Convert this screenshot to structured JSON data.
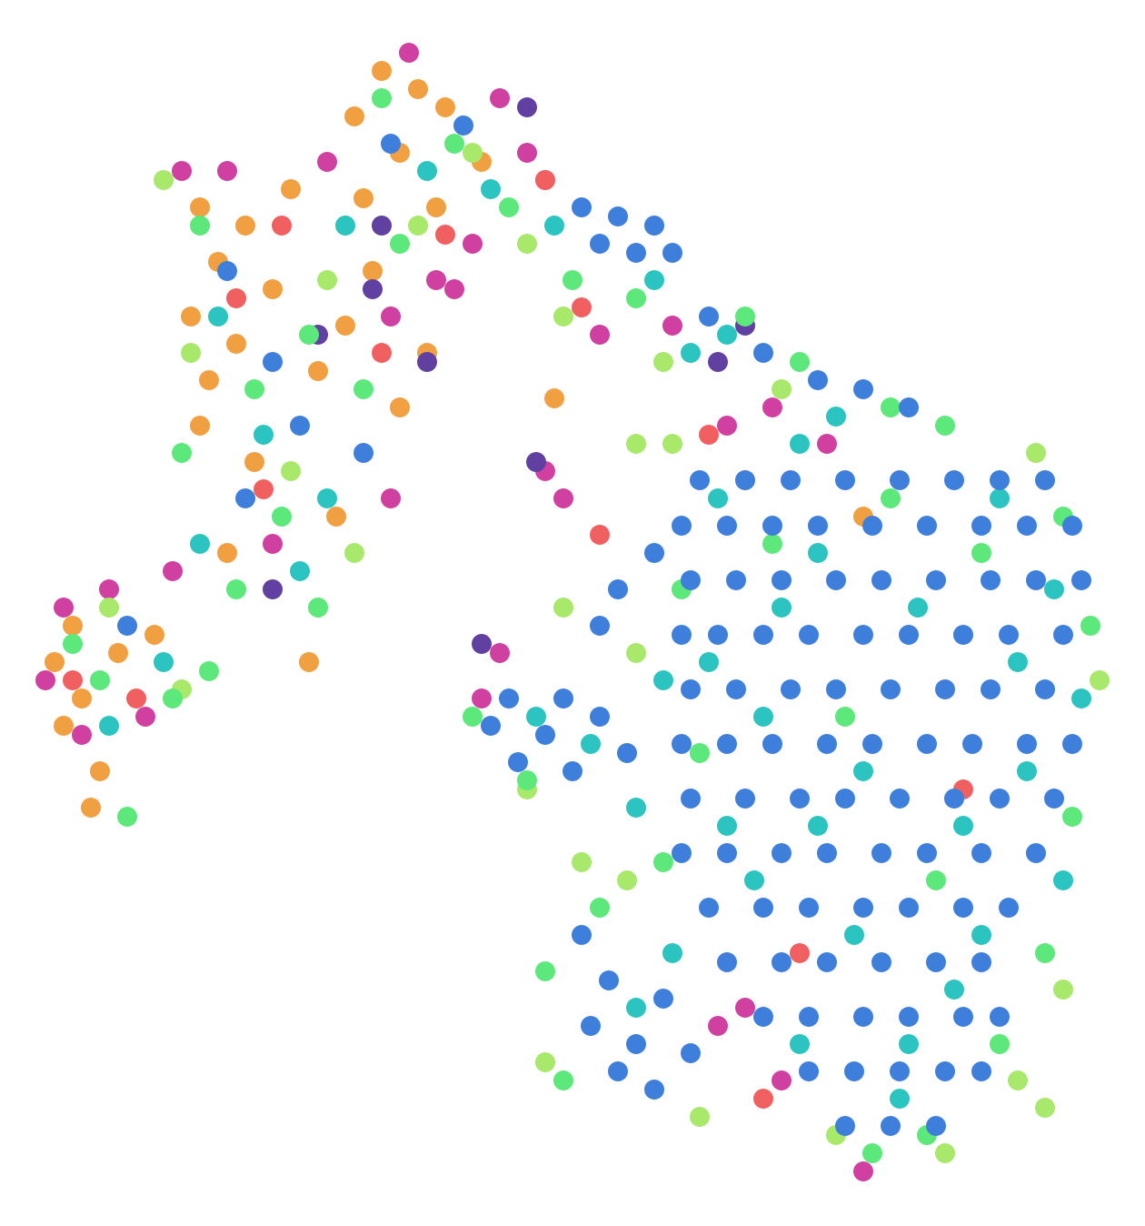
{
  "chart_data": {
    "type": "scatter",
    "xlim": [
      0,
      126
    ],
    "ylim": [
      0,
      134.8
    ],
    "marker_radius": 11,
    "series": [
      {
        "color": "#f0a040",
        "x": [
          22,
          24,
          21,
          23,
          27,
          30,
          26,
          22,
          28,
          35,
          38,
          32,
          39,
          42,
          46,
          49,
          44,
          40,
          53,
          48,
          6,
          9,
          8,
          11,
          10,
          7,
          13,
          17,
          25,
          37,
          34,
          41,
          44,
          47,
          61,
          82,
          95
        ],
        "y": [
          112,
          106,
          100,
          93,
          110,
          103,
          97,
          88,
          84,
          94,
          99,
          114,
          122,
          127,
          125,
          123,
          118,
          113,
          117,
          112,
          62,
          58,
          66,
          50,
          46,
          55,
          63,
          65,
          74,
          78,
          62,
          105,
          90,
          96,
          91,
          82,
          78
        ]
      },
      {
        "color": "#d040a0",
        "x": [
          20,
          25,
          36,
          45,
          55,
          58,
          60,
          52,
          48,
          43,
          50,
          5,
          7,
          9,
          12,
          16,
          19,
          30,
          43,
          60,
          62,
          53,
          55,
          85,
          91,
          80,
          74,
          66,
          95,
          86,
          82,
          79
        ],
        "y": [
          116,
          116,
          117,
          129,
          124,
          118,
          115,
          108,
          104,
          100,
          103,
          60,
          68,
          54,
          70,
          56,
          72,
          75,
          80,
          83,
          80,
          58,
          63,
          90,
          86,
          88,
          99,
          98,
          6,
          16,
          24,
          22
        ]
      },
      {
        "color": "#f06060",
        "x": [
          26,
          31,
          42,
          49,
          64,
          78,
          60,
          8,
          15,
          29,
          106,
          88,
          84,
          66
        ],
        "y": [
          102,
          110,
          96,
          109,
          101,
          87,
          115,
          60,
          58,
          81,
          48,
          30,
          14,
          76
        ]
      },
      {
        "color": "#6040a0",
        "x": [
          35,
          41,
          47,
          42,
          53,
          59,
          79,
          82,
          30,
          58
        ],
        "y": [
          98,
          103,
          95,
          110,
          64,
          84,
          95,
          99,
          70,
          123
        ]
      },
      {
        "color": "#a8e86a",
        "x": [
          121,
          114,
          74,
          70,
          62,
          58,
          64,
          70,
          92,
          104,
          112,
          117,
          77,
          60,
          69,
          115,
          18,
          21,
          36,
          46,
          52,
          58,
          12,
          20,
          32,
          39,
          62,
          73,
          86
        ],
        "y": [
          60,
          85,
          86,
          86,
          68,
          48,
          40,
          63,
          10,
          8,
          16,
          26,
          12,
          18,
          38,
          13,
          115,
          96,
          104,
          110,
          118,
          108,
          68,
          59,
          83,
          74,
          100,
          95,
          92
        ]
      },
      {
        "color": "#5ce87a",
        "x": [
          120,
          117,
          118,
          115,
          75,
          73,
          77,
          98,
          85,
          110,
          96,
          102,
          62,
          60,
          66,
          52,
          58,
          108,
          93,
          103,
          82,
          88,
          98,
          104,
          70,
          63,
          22,
          28,
          34,
          20,
          31,
          40,
          44,
          50,
          56,
          26,
          35,
          42,
          11,
          8,
          14,
          19,
          23
        ],
        "y": [
          66,
          78,
          45,
          30,
          70,
          40,
          52,
          80,
          75,
          20,
          8,
          10,
          16,
          28,
          35,
          56,
          49,
          74,
          56,
          38,
          100,
          95,
          90,
          88,
          102,
          104,
          110,
          92,
          98,
          85,
          78,
          92,
          108,
          119,
          112,
          70,
          68,
          124,
          60,
          64,
          45,
          58,
          61
        ]
      },
      {
        "color": "#2cc4c0",
        "x": [
          79,
          90,
          101,
          112,
          84,
          95,
          106,
          117,
          83,
          94,
          105,
          88,
          99,
          110,
          78,
          88,
          116,
          70,
          74,
          59,
          65,
          70,
          73,
          90,
          100,
          108,
          119,
          113,
          80,
          86,
          72,
          80,
          92,
          61,
          76,
          24,
          29,
          33,
          22,
          38,
          47,
          54,
          12,
          18,
          36
        ],
        "y": [
          80,
          74,
          68,
          62,
          56,
          50,
          44,
          38,
          38,
          32,
          26,
          20,
          14,
          80,
          62,
          86,
          70,
          24,
          30,
          56,
          53,
          46,
          60,
          44,
          20,
          32,
          58,
          50,
          44,
          68,
          104,
          98,
          89,
          110,
          96,
          100,
          87,
          72,
          75,
          110,
          116,
          114,
          55,
          62,
          80
        ]
      },
      {
        "color": "#3f7fdc",
        "x": [
          77,
          82,
          87,
          93,
          99,
          105,
          110,
          115,
          75,
          80,
          85,
          90,
          96,
          102,
          108,
          113,
          118,
          76,
          81,
          86,
          92,
          97,
          103,
          109,
          114,
          119,
          75,
          79,
          84,
          89,
          95,
          100,
          106,
          111,
          117,
          76,
          81,
          87,
          92,
          98,
          104,
          109,
          115,
          75,
          80,
          85,
          91,
          96,
          102,
          107,
          113,
          118,
          76,
          82,
          88,
          93,
          99,
          105,
          110,
          116,
          75,
          80,
          86,
          91,
          97,
          102,
          108,
          114,
          78,
          84,
          89,
          95,
          100,
          106,
          111,
          80,
          86,
          91,
          97,
          103,
          108,
          84,
          89,
          95,
          100,
          106,
          110,
          89,
          94,
          99,
          104,
          108,
          93,
          98,
          103,
          64,
          67,
          65,
          70,
          68,
          73,
          72,
          76,
          54,
          57,
          60,
          63,
          66,
          69,
          56,
          62,
          64,
          68,
          72,
          70,
          66,
          74,
          78,
          84,
          95,
          100,
          90,
          68,
          72,
          66,
          25,
          30,
          33,
          27,
          43,
          51,
          40,
          14
        ],
        "y": [
          82,
          82,
          82,
          82,
          82,
          82,
          82,
          82,
          77,
          77,
          77,
          77,
          77,
          77,
          77,
          77,
          77,
          71,
          71,
          71,
          71,
          71,
          71,
          71,
          71,
          71,
          65,
          65,
          65,
          65,
          65,
          65,
          65,
          65,
          65,
          59,
          59,
          59,
          59,
          59,
          59,
          59,
          59,
          53,
          53,
          53,
          53,
          53,
          53,
          53,
          53,
          53,
          47,
          47,
          47,
          47,
          47,
          47,
          47,
          47,
          41,
          41,
          41,
          41,
          41,
          41,
          41,
          41,
          35,
          35,
          35,
          35,
          35,
          35,
          35,
          29,
          29,
          29,
          29,
          29,
          29,
          23,
          23,
          23,
          23,
          23,
          23,
          17,
          17,
          17,
          17,
          17,
          11,
          11,
          11,
          32,
          27,
          22,
          20,
          17,
          25,
          15,
          19,
          55,
          51,
          54,
          50,
          56,
          52,
          58,
          58,
          112,
          111,
          110,
          107,
          108,
          107,
          100,
          96,
          92,
          90,
          93,
          70,
          74,
          66,
          105,
          95,
          88,
          80,
          119,
          121,
          85,
          66
        ]
      }
    ]
  }
}
